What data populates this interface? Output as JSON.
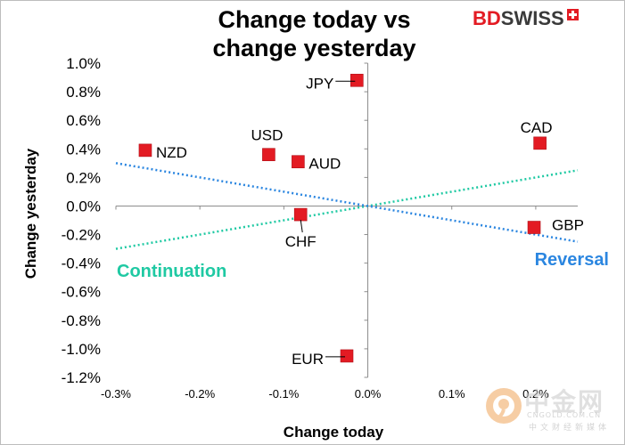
{
  "chart_data": {
    "type": "scatter",
    "title_lines": [
      "Change today vs",
      "change yesterday"
    ],
    "xlabel": "Change today",
    "ylabel": "Change yesterday",
    "xlim": [
      -0.3,
      0.25
    ],
    "ylim": [
      -1.2,
      1.0
    ],
    "x_ticks": [
      {
        "value": -0.3,
        "label": "-0.3%"
      },
      {
        "value": -0.2,
        "label": "-0.2%"
      },
      {
        "value": -0.1,
        "label": "-0.1%"
      },
      {
        "value": 0.0,
        "label": "0.0%"
      },
      {
        "value": 0.1,
        "label": "0.1%"
      },
      {
        "value": 0.2,
        "label": "0.2%"
      }
    ],
    "y_ticks": [
      {
        "value": 1.0,
        "label": "1.0%"
      },
      {
        "value": 0.8,
        "label": "0.8%"
      },
      {
        "value": 0.6,
        "label": "0.6%"
      },
      {
        "value": 0.4,
        "label": "0.4%"
      },
      {
        "value": 0.2,
        "label": "0.2%"
      },
      {
        "value": 0.0,
        "label": "0.0%"
      },
      {
        "value": -0.2,
        "label": "-0.2%"
      },
      {
        "value": -0.4,
        "label": "-0.4%"
      },
      {
        "value": -0.6,
        "label": "-0.6%"
      },
      {
        "value": -0.8,
        "label": "-0.8%"
      },
      {
        "value": -1.0,
        "label": "-1.0%"
      },
      {
        "value": -1.2,
        "label": "-1.2%"
      }
    ],
    "points": [
      {
        "label": "JPY",
        "x": -0.013,
        "y": 0.88,
        "label_pos": "left"
      },
      {
        "label": "CAD",
        "x": 0.205,
        "y": 0.44,
        "label_pos": "above"
      },
      {
        "label": "NZD",
        "x": -0.265,
        "y": 0.39,
        "label_pos": "right"
      },
      {
        "label": "USD",
        "x": -0.118,
        "y": 0.36,
        "label_pos": "above"
      },
      {
        "label": "AUD",
        "x": -0.083,
        "y": 0.31,
        "label_pos": "right"
      },
      {
        "label": "CHF",
        "x": -0.08,
        "y": -0.06,
        "label_pos": "below"
      },
      {
        "label": "GBP",
        "x": 0.198,
        "y": -0.15,
        "label_pos": "right"
      },
      {
        "label": "EUR",
        "x": -0.025,
        "y": -1.05,
        "label_pos": "left"
      }
    ],
    "trend_lines": [
      {
        "name": "Continuation",
        "from": [
          -0.3,
          -0.3
        ],
        "to": [
          0.25,
          0.25
        ],
        "color": "#1fc9a3"
      },
      {
        "name": "Reversal",
        "from": [
          -0.3,
          0.3
        ],
        "to": [
          0.25,
          -0.25
        ],
        "color": "#2b86e0"
      }
    ],
    "marker_color": "#e31b23"
  },
  "brand": {
    "logo_bd": "BD",
    "logo_swiss": "SWISS"
  },
  "watermark": {
    "main": "中金网",
    "domain": "CNGOLD.COM.CN",
    "sub": "中文财经新媒体"
  }
}
